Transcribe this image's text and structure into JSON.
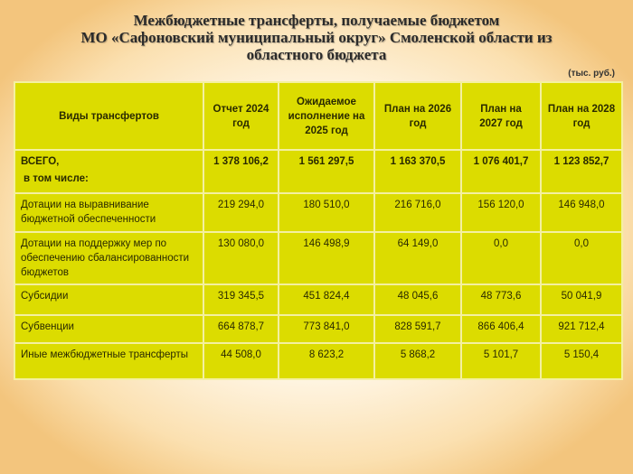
{
  "title_lines": [
    "Межбюджетные трансферты, получаемые бюджетом",
    "МО «Сафоновский муниципальный округ» Смоленской области из",
    "областного бюджета"
  ],
  "units": "(тыс. руб.)",
  "colors": {
    "table_fill": "#dcdc00",
    "grid": "#f4f0a0"
  },
  "table": {
    "headers": [
      "Виды трансфертов",
      "Отчет 2024 год",
      "Ожидаемое исполнение на 2025 год",
      "План на 2026 год",
      "План на 2027 год",
      "План на 2028 год"
    ],
    "rows": [
      {
        "label_lines": [
          "ВСЕГО,",
          "в том числе:"
        ],
        "values": [
          "1 378 106,2",
          "1 561 297,5",
          "1 163 370,5",
          "1 076 401,7",
          "1 123 852,7"
        ]
      },
      {
        "label_lines": [
          "Дотации на выравнивание бюджетной обеспеченности"
        ],
        "values": [
          "219 294,0",
          "180 510,0",
          "216 716,0",
          "156 120,0",
          "146 948,0"
        ]
      },
      {
        "label_lines": [
          "Дотации на поддержку мер по обеспечению сбалансированности бюджетов"
        ],
        "values": [
          "130 080,0",
          "146 498,9",
          "64 149,0",
          "0,0",
          "0,0"
        ]
      },
      {
        "label_lines": [
          "Субсидии"
        ],
        "values": [
          "319 345,5",
          "451 824,4",
          "48 045,6",
          "48 773,6",
          "50 041,9"
        ]
      },
      {
        "label_lines": [
          "Субвенции"
        ],
        "values": [
          "664 878,7",
          "773 841,0",
          "828 591,7",
          "866 406,4",
          "921 712,4"
        ]
      },
      {
        "label_lines": [
          "Иные межбюджетные трансферты"
        ],
        "values": [
          "44 508,0",
          "8 623,2",
          "5 868,2",
          "5 101,7",
          "5 150,4"
        ]
      }
    ]
  }
}
